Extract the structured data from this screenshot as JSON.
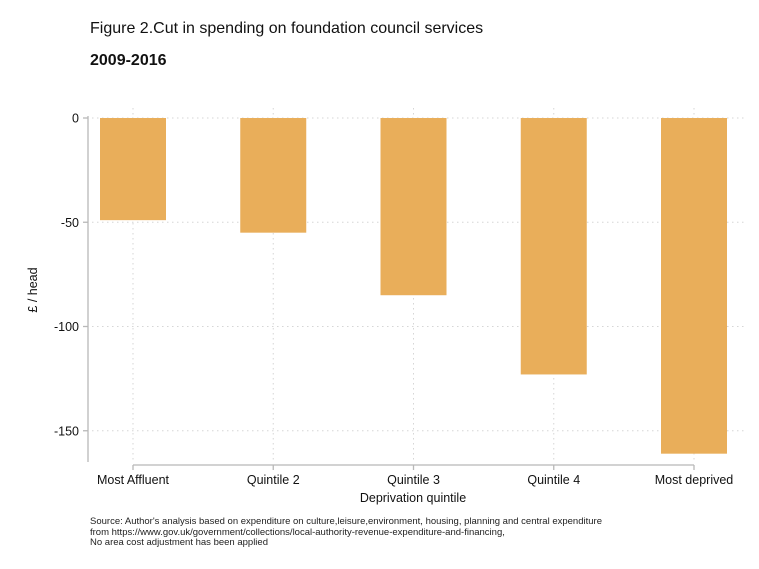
{
  "chart_data": {
    "type": "bar",
    "title": "Figure 2.Cut in spending on foundation council services",
    "subtitle": "2009-2016",
    "categories": [
      "Most Affluent",
      "Quintile 2",
      "Quintile 3",
      "Quintile 4",
      "Most deprived"
    ],
    "values": [
      -49,
      -55,
      -85,
      -123,
      -161
    ],
    "xlabel": "Deprivation quintile",
    "ylabel": "£ / head",
    "ylim": [
      -166,
      0
    ],
    "yticks": [
      0,
      -50,
      -100,
      -150
    ],
    "ytick_labels": [
      "0",
      "-50",
      "-100",
      "-150"
    ],
    "grid": true,
    "bar_color": "#E9AE5A",
    "source_lines": [
      "Source: Author's analysis based on expenditure on culture,leisure,environment, housing, planning and central expenditure",
      "from https://www.gov.uk/government/collections/local-authority-revenue-expenditure-and-financing,",
      "No area cost adjustment has been applied"
    ]
  }
}
